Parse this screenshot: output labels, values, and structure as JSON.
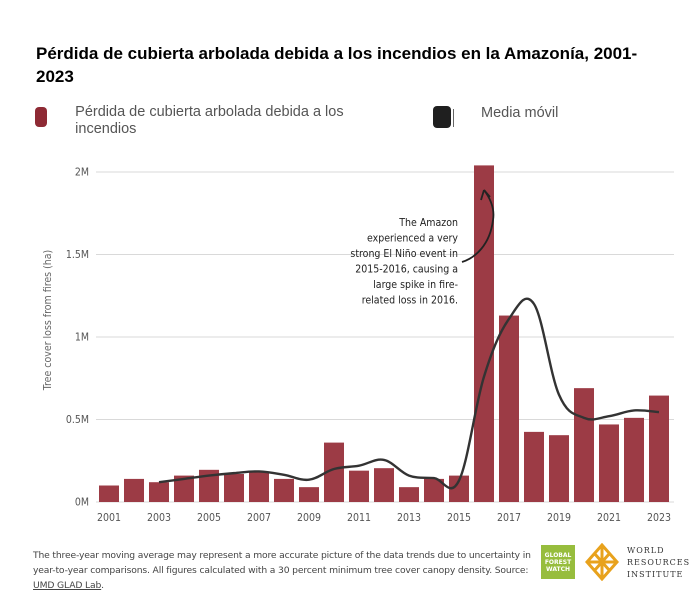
{
  "title": "Pérdida de cubierta arbolada debida a los incendios en la Amazonía, 2001-2023",
  "legend": {
    "bars_label": "Pérdida de cubierta arbolada debida a los incendios",
    "line_label": "Media móvil"
  },
  "colors": {
    "bar": "#9c3b45",
    "line": "#333333",
    "grid": "#d9d9d9"
  },
  "annotation": {
    "lines": [
      "The Amazon",
      "experienced a very",
      "strong El Niño event in",
      "2015-2016, causing a",
      "large spike in fire-",
      "related loss in 2016."
    ]
  },
  "footer": {
    "text": "The three-year moving average may represent a more accurate picture of the data trends due to uncertainty in year-to-year comparisons. All figures calculated with a 30 percent minimum tree cover canopy density. Source: ",
    "source_link": "UMD GLAD Lab",
    "end": "."
  },
  "logos": {
    "gfw_lines": [
      "GLOBAL",
      "FOREST",
      "WATCH"
    ],
    "wri_lines": [
      "WORLD",
      "RESOURCES",
      "INSTITUTE"
    ]
  },
  "chart_data": {
    "type": "bar",
    "title": "Pérdida de cubierta arbolada debida a los incendios en la Amazonía, 2001-2023",
    "ylabel": "Tree cover loss from fires (ha)",
    "xlabel": "",
    "ylim": [
      0,
      2100000
    ],
    "yticks": [
      0,
      500000,
      1000000,
      1500000,
      2000000
    ],
    "ytick_labels": [
      "0M",
      "0.5M",
      "1M",
      "1.5M",
      "2M"
    ],
    "xtick_labels": [
      "2001",
      "2003",
      "2005",
      "2007",
      "2009",
      "2011",
      "2013",
      "2015",
      "2017",
      "2019",
      "2021",
      "2023"
    ],
    "grid": true,
    "legend_position": "top",
    "categories": [
      2001,
      2002,
      2003,
      2004,
      2005,
      2006,
      2007,
      2008,
      2009,
      2010,
      2011,
      2012,
      2013,
      2014,
      2015,
      2016,
      2017,
      2018,
      2019,
      2020,
      2021,
      2022,
      2023
    ],
    "series": [
      {
        "name": "Pérdida de cubierta arbolada debida a los incendios",
        "type": "bar",
        "values": [
          100000,
          140000,
          120000,
          160000,
          195000,
          170000,
          180000,
          140000,
          90000,
          360000,
          190000,
          205000,
          90000,
          140000,
          160000,
          2040000,
          1130000,
          425000,
          405000,
          690000,
          470000,
          510000,
          645000
        ]
      },
      {
        "name": "Media móvil",
        "type": "line",
        "x": [
          2003,
          2004,
          2005,
          2006,
          2007,
          2008,
          2009,
          2010,
          2011,
          2012,
          2013,
          2014,
          2015,
          2016,
          2017,
          2018,
          2019,
          2020,
          2021,
          2022,
          2023
        ],
        "values": [
          120000,
          140000,
          160000,
          175000,
          185000,
          165000,
          135000,
          200000,
          220000,
          255000,
          160000,
          145000,
          130000,
          760000,
          1110000,
          1200000,
          650000,
          510000,
          520000,
          555000,
          545000
        ]
      }
    ]
  }
}
